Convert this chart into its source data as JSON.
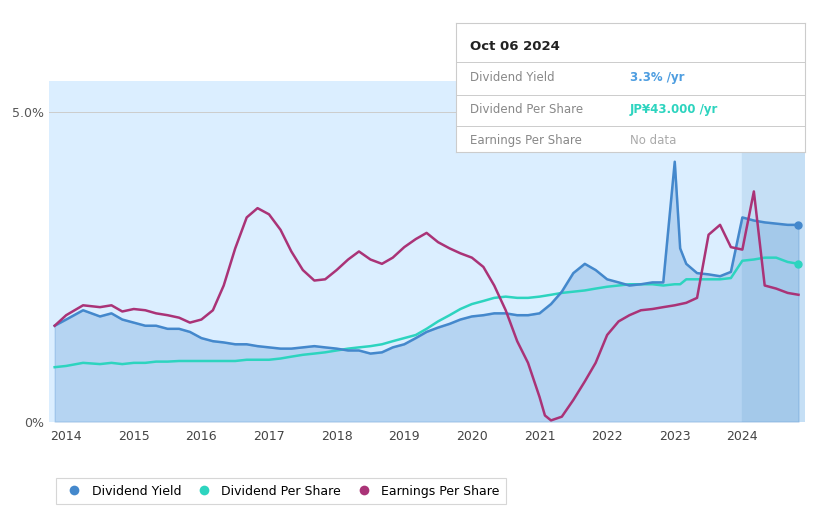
{
  "tooltip_date": "Oct 06 2024",
  "tooltip_rows": [
    {
      "label": "Dividend Yield",
      "value": "3.3%",
      "unit": "/yr",
      "color": "#4d9de0"
    },
    {
      "label": "Dividend Per Share",
      "value": "JP¥43.000",
      "unit": "/yr",
      "color": "#2dd4bf"
    },
    {
      "label": "Earnings Per Share",
      "value": "No data",
      "unit": "",
      "color": "#aaaaaa"
    }
  ],
  "background_color": "#ffffff",
  "chart_bg": "#dbeeff",
  "future_bg": "#c5dff5",
  "dividend_yield": {
    "color": "#4488cc",
    "label": "Dividend Yield",
    "x": [
      2013.83,
      2014.0,
      2014.25,
      2014.5,
      2014.67,
      2014.83,
      2015.0,
      2015.17,
      2015.33,
      2015.5,
      2015.67,
      2015.83,
      2016.0,
      2016.17,
      2016.33,
      2016.5,
      2016.67,
      2016.83,
      2017.0,
      2017.17,
      2017.33,
      2017.5,
      2017.67,
      2017.83,
      2018.0,
      2018.17,
      2018.33,
      2018.5,
      2018.67,
      2018.83,
      2019.0,
      2019.17,
      2019.33,
      2019.5,
      2019.67,
      2019.83,
      2020.0,
      2020.17,
      2020.33,
      2020.5,
      2020.67,
      2020.83,
      2021.0,
      2021.17,
      2021.33,
      2021.5,
      2021.67,
      2021.83,
      2022.0,
      2022.17,
      2022.33,
      2022.5,
      2022.67,
      2022.83,
      2023.0,
      2023.08,
      2023.17,
      2023.33,
      2023.5,
      2023.67,
      2023.83,
      2024.0,
      2024.17,
      2024.33,
      2024.5,
      2024.67,
      2024.83
    ],
    "y": [
      1.55,
      1.65,
      1.8,
      1.7,
      1.75,
      1.65,
      1.6,
      1.55,
      1.55,
      1.5,
      1.5,
      1.45,
      1.35,
      1.3,
      1.28,
      1.25,
      1.25,
      1.22,
      1.2,
      1.18,
      1.18,
      1.2,
      1.22,
      1.2,
      1.18,
      1.15,
      1.15,
      1.1,
      1.12,
      1.2,
      1.25,
      1.35,
      1.45,
      1.52,
      1.58,
      1.65,
      1.7,
      1.72,
      1.75,
      1.75,
      1.72,
      1.72,
      1.75,
      1.9,
      2.1,
      2.4,
      2.55,
      2.45,
      2.3,
      2.25,
      2.2,
      2.22,
      2.25,
      2.25,
      4.2,
      2.8,
      2.55,
      2.4,
      2.38,
      2.35,
      2.42,
      3.3,
      3.25,
      3.22,
      3.2,
      3.18,
      3.18
    ]
  },
  "dividend_per_share": {
    "color": "#2dd4bf",
    "label": "Dividend Per Share",
    "x": [
      2013.83,
      2014.0,
      2014.25,
      2014.5,
      2014.67,
      2014.83,
      2015.0,
      2015.17,
      2015.33,
      2015.5,
      2015.67,
      2015.83,
      2016.0,
      2016.17,
      2016.33,
      2016.5,
      2016.67,
      2016.83,
      2017.0,
      2017.17,
      2017.33,
      2017.5,
      2017.67,
      2017.83,
      2018.0,
      2018.17,
      2018.33,
      2018.5,
      2018.67,
      2018.83,
      2019.0,
      2019.17,
      2019.33,
      2019.5,
      2019.67,
      2019.83,
      2020.0,
      2020.17,
      2020.33,
      2020.5,
      2020.67,
      2020.83,
      2021.0,
      2021.17,
      2021.33,
      2021.5,
      2021.67,
      2021.83,
      2022.0,
      2022.17,
      2022.33,
      2022.5,
      2022.67,
      2022.83,
      2023.0,
      2023.08,
      2023.17,
      2023.33,
      2023.5,
      2023.67,
      2023.83,
      2024.0,
      2024.17,
      2024.33,
      2024.5,
      2024.67,
      2024.83
    ],
    "y": [
      0.88,
      0.9,
      0.95,
      0.93,
      0.95,
      0.93,
      0.95,
      0.95,
      0.97,
      0.97,
      0.98,
      0.98,
      0.98,
      0.98,
      0.98,
      0.98,
      1.0,
      1.0,
      1.0,
      1.02,
      1.05,
      1.08,
      1.1,
      1.12,
      1.15,
      1.18,
      1.2,
      1.22,
      1.25,
      1.3,
      1.35,
      1.4,
      1.5,
      1.62,
      1.72,
      1.82,
      1.9,
      1.95,
      2.0,
      2.02,
      2.0,
      2.0,
      2.02,
      2.05,
      2.08,
      2.1,
      2.12,
      2.15,
      2.18,
      2.2,
      2.22,
      2.22,
      2.22,
      2.2,
      2.22,
      2.22,
      2.3,
      2.3,
      2.3,
      2.3,
      2.32,
      2.6,
      2.62,
      2.65,
      2.65,
      2.58,
      2.55
    ]
  },
  "earnings_per_share": {
    "color": "#aa3377",
    "label": "Earnings Per Share",
    "x": [
      2013.83,
      2014.0,
      2014.25,
      2014.5,
      2014.67,
      2014.83,
      2015.0,
      2015.17,
      2015.33,
      2015.5,
      2015.67,
      2015.83,
      2016.0,
      2016.17,
      2016.33,
      2016.5,
      2016.67,
      2016.83,
      2017.0,
      2017.17,
      2017.33,
      2017.5,
      2017.67,
      2017.83,
      2018.0,
      2018.17,
      2018.33,
      2018.5,
      2018.67,
      2018.83,
      2019.0,
      2019.17,
      2019.33,
      2019.5,
      2019.67,
      2019.83,
      2020.0,
      2020.17,
      2020.33,
      2020.5,
      2020.67,
      2020.83,
      2021.0,
      2021.08,
      2021.17,
      2021.33,
      2021.5,
      2021.67,
      2021.83,
      2022.0,
      2022.17,
      2022.33,
      2022.5,
      2022.67,
      2022.83,
      2023.0,
      2023.17,
      2023.33,
      2023.5,
      2023.67,
      2023.83,
      2024.0,
      2024.17,
      2024.33,
      2024.5,
      2024.67,
      2024.83
    ],
    "y": [
      1.55,
      1.72,
      1.88,
      1.85,
      1.88,
      1.78,
      1.82,
      1.8,
      1.75,
      1.72,
      1.68,
      1.6,
      1.65,
      1.8,
      2.2,
      2.8,
      3.3,
      3.45,
      3.35,
      3.1,
      2.75,
      2.45,
      2.28,
      2.3,
      2.45,
      2.62,
      2.75,
      2.62,
      2.55,
      2.65,
      2.82,
      2.95,
      3.05,
      2.9,
      2.8,
      2.72,
      2.65,
      2.5,
      2.2,
      1.8,
      1.3,
      0.95,
      0.4,
      0.1,
      0.02,
      0.08,
      0.35,
      0.65,
      0.95,
      1.4,
      1.62,
      1.72,
      1.8,
      1.82,
      1.85,
      1.88,
      1.92,
      2.0,
      3.02,
      3.18,
      2.82,
      2.78,
      3.72,
      2.2,
      2.15,
      2.08,
      2.05
    ]
  },
  "future_start_x": 2024.0,
  "ylim": [
    0.0,
    5.5
  ],
  "xlim": [
    2013.75,
    2024.92
  ],
  "x_ticks": [
    "2014",
    "2015",
    "2016",
    "2017",
    "2018",
    "2019",
    "2020",
    "2021",
    "2022",
    "2023",
    "2024"
  ]
}
